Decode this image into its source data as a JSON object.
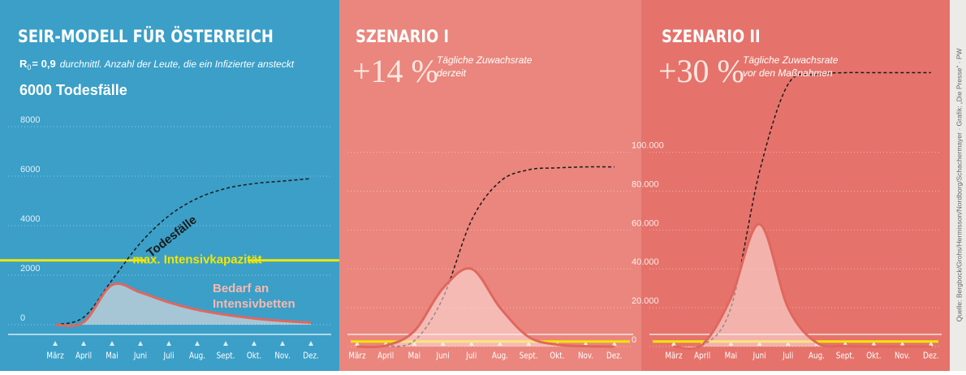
{
  "chart_data": [
    {
      "type": "line",
      "title": "SEIR-MODELL FÜR ÖSTERREICH",
      "subtitle": {
        "symbol": "R",
        "subscript": "0",
        "value": "= 0,9",
        "text": "durchnittl. Anzahl der Leute, die ein Infizierter ansteckt"
      },
      "headline": "6000 Todesfälle",
      "categories": [
        "März",
        "April",
        "Mai",
        "Juni",
        "Juli",
        "Aug.",
        "Sept.",
        "Okt.",
        "Nov.",
        "Dez."
      ],
      "series": [
        {
          "name": "Todesfälle",
          "color": "#1a1a1a",
          "style": "dashed",
          "values": [
            0,
            300,
            1800,
            3300,
            4400,
            5100,
            5500,
            5700,
            5800,
            5900
          ]
        },
        {
          "name": "Bedarf an Intensivbetten",
          "color": "#e0675e",
          "style": "area",
          "values": [
            0,
            100,
            1600,
            1300,
            900,
            600,
            400,
            250,
            150,
            80
          ]
        }
      ],
      "hline": {
        "value": 2600,
        "label": "max. Intensivkapazität",
        "color": "#f2e600"
      },
      "ylim": [
        0,
        8000
      ],
      "yticks": [
        0,
        2000,
        4000,
        6000,
        8000
      ],
      "grid": true,
      "background": "#3b9fc8"
    },
    {
      "type": "line",
      "title": "SZENARIO I",
      "rate": "+14 %",
      "rate_text": [
        "Tägliche Zuwachsrate",
        "derzeit"
      ],
      "categories": [
        "März",
        "April",
        "Mai",
        "Juni",
        "Juli",
        "Aug.",
        "Sept.",
        "Okt.",
        "Nov.",
        "Dez."
      ],
      "series": [
        {
          "color": "#1a1a1a",
          "style": "dashed",
          "values": [
            0,
            200,
            3000,
            25000,
            65000,
            85000,
            91000,
            92000,
            92500,
            92500
          ]
        },
        {
          "color": "#e0675e",
          "style": "area",
          "values": [
            0,
            500,
            8000,
            30000,
            40000,
            20000,
            5000,
            1000,
            200,
            0
          ]
        }
      ],
      "hline": {
        "value": 2600,
        "color": "#f2e600"
      },
      "ylim": [
        0,
        150000
      ],
      "yticks": [
        0,
        20000,
        40000,
        60000,
        80000,
        100000
      ],
      "ytick_labels": false,
      "grid": true,
      "background": "#ea867d"
    },
    {
      "type": "line",
      "title": "SZENARIO II",
      "rate": "+30 %",
      "rate_text": [
        "Tägliche Zuwachsrate",
        "vor den Maßnahmen"
      ],
      "categories": [
        "März",
        "April",
        "Mai",
        "Juni",
        "Juli",
        "Aug.",
        "Sept.",
        "Okt.",
        "Nov.",
        "Dez."
      ],
      "series": [
        {
          "color": "#1a1a1a",
          "style": "dashed",
          "values": [
            0,
            500,
            20000,
            90000,
            135000,
            140000,
            141000,
            141000,
            141000,
            141000
          ]
        },
        {
          "color": "#e0675e",
          "style": "area",
          "values": [
            0,
            1000,
            25000,
            63000,
            20000,
            2000,
            300,
            0,
            0,
            0
          ]
        }
      ],
      "hline": {
        "value": 2600,
        "color": "#f2e600"
      },
      "ylim": [
        0,
        150000
      ],
      "yticks": [
        0,
        {
          "value": 20000,
          "label": "20.000"
        },
        {
          "value": 40000,
          "label": "40.000"
        },
        {
          "value": 60000,
          "label": "60.000"
        },
        {
          "value": 80000,
          "label": "80.000"
        },
        {
          "value": 100000,
          "label": "100.000"
        }
      ],
      "grid": true,
      "background": "#e5736b"
    }
  ],
  "source": "Quelle: Bergbock/Grohs/Hermisson/Nordborg/Schachermayer · Grafik: „Die Presse“ · PW"
}
